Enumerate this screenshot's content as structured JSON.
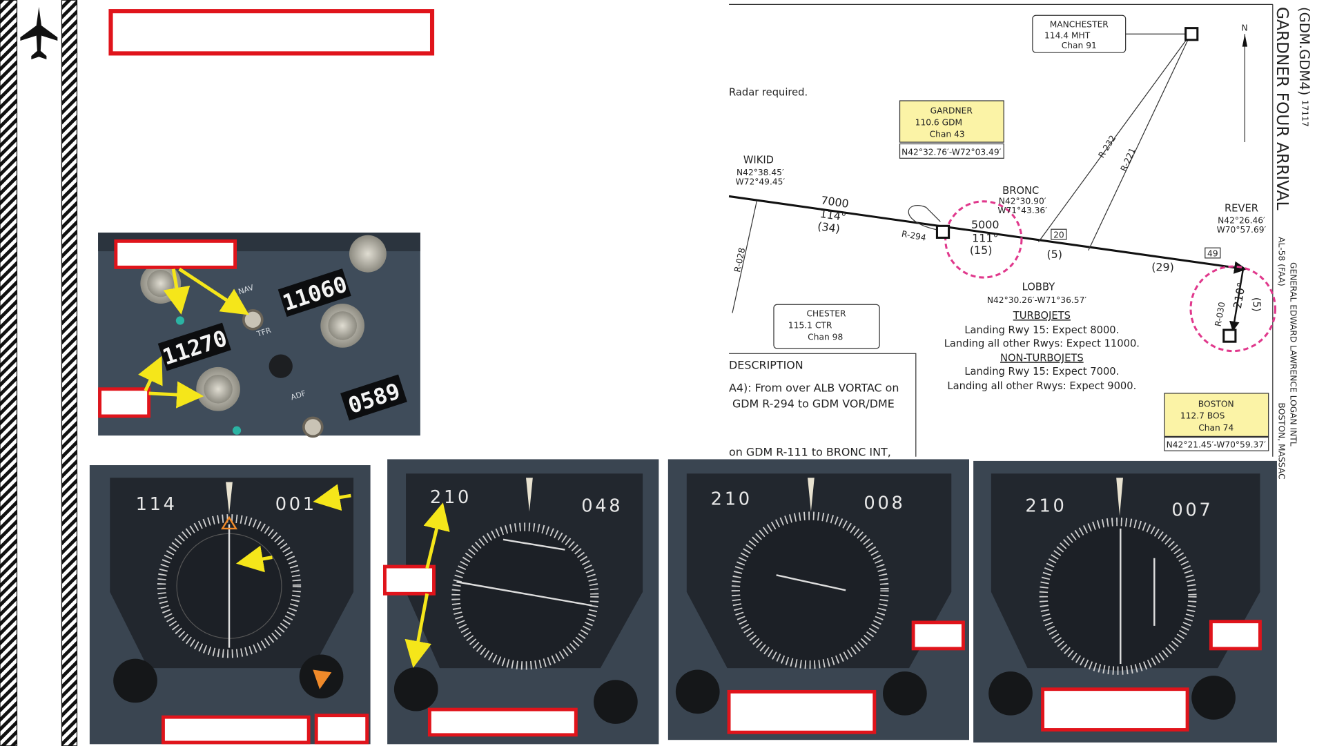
{
  "radio_panel": {
    "standby": "11270",
    "active": "11060",
    "adf": "0589",
    "nav_label": "NAV",
    "tfr_label": "TFR",
    "adf_label": "ADF"
  },
  "hsi_panels": [
    {
      "left": "114",
      "right": "001"
    },
    {
      "left": "210",
      "right": "048"
    },
    {
      "left": "210",
      "right": "008"
    },
    {
      "left": "210",
      "right": "007"
    }
  ],
  "chart": {
    "title": "GARDNER FOUR ARRIVAL",
    "code": "(GDM.GDM4)",
    "date": "17117",
    "north": "N",
    "airport": "GENERAL EDWARD LAWRENCE LOGAN INTL",
    "city": "BOSTON, MASSAC",
    "ref": "AL-58 (FAA)",
    "note": "Radar required.",
    "manchester": {
      "name": "MANCHESTER",
      "freq": "114.4 MHT",
      "chan": "Chan 91"
    },
    "gardner": {
      "name": "GARDNER",
      "freq": "110.6 GDM",
      "chan": "Chan 43",
      "coords": "N42°32.76′-W72°03.49′"
    },
    "wikid": {
      "name": "WIKID",
      "lat": "N42°38.45′",
      "lon": "W72°49.45′"
    },
    "bronc": {
      "name": "BRONC",
      "lat": "N42°30.90′",
      "lon": "W71°43.36′"
    },
    "rever": {
      "name": "REVER",
      "lat": "N42°26.46′",
      "lon": "W70°57.69′"
    },
    "lobby": {
      "name": "LOBBY",
      "coords": "N42°30.26′-W71°36.57′"
    },
    "chester": {
      "name": "CHESTER",
      "freq": "115.1 CTR",
      "chan": "Chan 98"
    },
    "boston": {
      "name": "BOSTON",
      "freq": "112.7 BOS",
      "chan": "Chan 74",
      "coords": "N42°21.45′-W70°59.37′"
    },
    "leg1": [
      "7000",
      "114°",
      "(34)"
    ],
    "leg2": [
      "5000",
      "111°",
      "(15)"
    ],
    "dist_bronc_lobby": "(5)",
    "dist_lobby_rever": "(29)",
    "mea1": "20",
    "mea2": "49",
    "radials": [
      "R-294",
      "R-232",
      "R-221",
      "R-028",
      "R-030"
    ],
    "rever_leg": [
      "210°",
      "(5)"
    ],
    "turbojets": {
      "heading": "TURBOJETS",
      "lines": [
        "Landing Rwy 15: Expect 8000.",
        "Landing all other Rwys: Expect 11000."
      ]
    },
    "non_turbojets": {
      "heading": "NON-TURBOJETS",
      "lines": [
        "Landing Rwy 15: Expect 7000.",
        "Landing all other Rwys: Expect 9000."
      ]
    },
    "description": {
      "heading": "DESCRIPTION",
      "lines": [
        "A4): From over ALB VORTAC on",
        "GDM R-294 to GDM VOR/DME",
        "on GDM R-111 to BRONC INT,"
      ]
    }
  }
}
